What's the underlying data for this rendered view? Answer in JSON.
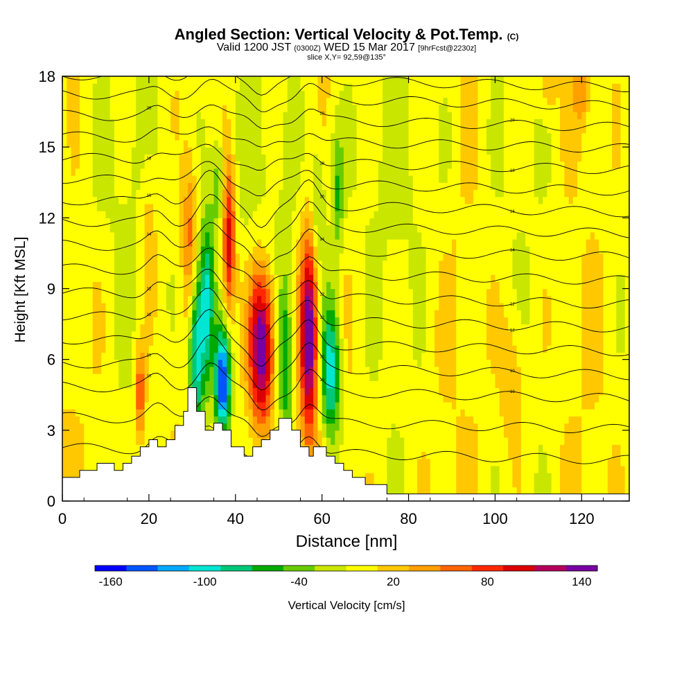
{
  "header": {
    "title": "Angled Section: Vertical Velocity & Pot.Temp.",
    "title_tag": "(C)",
    "valid_a": "Valid 1200 JST",
    "valid_zulu": "(0300Z)",
    "valid_b": "WED 15 Mar 2017",
    "forecast": "[9hrFcst@2230z]",
    "slice": "slice X,Y= 92,59@135°"
  },
  "chart_data": {
    "type": "heatmap",
    "xlabel": "Distance [nm]",
    "ylabel": "Height [Kft MSL]",
    "xlim": [
      0,
      131
    ],
    "ylim": [
      0,
      18
    ],
    "x_ticks": [
      "0",
      "20",
      "40",
      "60",
      "80",
      "100",
      "120"
    ],
    "y_ticks": [
      "0",
      "3",
      "6",
      "9",
      "12",
      "15",
      "18"
    ],
    "colorbar": {
      "label": "Vertical Velocity [cm/s]",
      "tick_labels": [
        "-160",
        "-100",
        "-40",
        "20",
        "80",
        "140"
      ],
      "range": [
        -160,
        160
      ],
      "colors": [
        "#0000ff",
        "#0055ff",
        "#00aaff",
        "#00e6d2",
        "#00c878",
        "#00aa00",
        "#66cc00",
        "#c8e600",
        "#ffff00",
        "#ffc800",
        "#ffa000",
        "#ff6400",
        "#ff2800",
        "#dc0000",
        "#b4005a",
        "#7800a0"
      ]
    },
    "terrain": [
      [
        0,
        1
      ],
      [
        4,
        1
      ],
      [
        4,
        1.3
      ],
      [
        8,
        1.3
      ],
      [
        8,
        1.6
      ],
      [
        12,
        1.6
      ],
      [
        12,
        1.3
      ],
      [
        14,
        1.3
      ],
      [
        14,
        1.6
      ],
      [
        16,
        1.6
      ],
      [
        16,
        1.9
      ],
      [
        18,
        1.9
      ],
      [
        18,
        2.3
      ],
      [
        20,
        2.3
      ],
      [
        20,
        2.6
      ],
      [
        22,
        2.6
      ],
      [
        22,
        2.3
      ],
      [
        24,
        2.3
      ],
      [
        24,
        2.6
      ],
      [
        26,
        2.6
      ],
      [
        26,
        3.2
      ],
      [
        28,
        3.2
      ],
      [
        28,
        3.8
      ],
      [
        29,
        3.8
      ],
      [
        29,
        4.8
      ],
      [
        31,
        4.8
      ],
      [
        31,
        3.8
      ],
      [
        33,
        3.8
      ],
      [
        33,
        3.0
      ],
      [
        35,
        3.0
      ],
      [
        35,
        3.3
      ],
      [
        37,
        3.3
      ],
      [
        37,
        3.0
      ],
      [
        39,
        3.0
      ],
      [
        39,
        2.3
      ],
      [
        42,
        2.3
      ],
      [
        42,
        1.9
      ],
      [
        44,
        1.9
      ],
      [
        44,
        2.3
      ],
      [
        46,
        2.3
      ],
      [
        46,
        2.6
      ],
      [
        48,
        2.6
      ],
      [
        48,
        3.0
      ],
      [
        50,
        3.0
      ],
      [
        50,
        3.5
      ],
      [
        53,
        3.5
      ],
      [
        53,
        3.0
      ],
      [
        55,
        3.0
      ],
      [
        55,
        2.3
      ],
      [
        57,
        2.3
      ],
      [
        57,
        1.9
      ],
      [
        58,
        1.9
      ],
      [
        58,
        2.3
      ],
      [
        61,
        2.3
      ],
      [
        61,
        1.9
      ],
      [
        63,
        1.9
      ],
      [
        63,
        1.6
      ],
      [
        65,
        1.6
      ],
      [
        65,
        1.3
      ],
      [
        67,
        1.3
      ],
      [
        67,
        1.0
      ],
      [
        70,
        1.0
      ],
      [
        70,
        0.7
      ],
      [
        75,
        0.7
      ],
      [
        75,
        0.3
      ],
      [
        131,
        0.3
      ]
    ],
    "features": [
      {
        "x": 18,
        "y": 4.5,
        "sx": 0.8,
        "sy": 1.3,
        "value": 80
      },
      {
        "x": 20,
        "y": 12,
        "sx": 1.5,
        "sy": 2.5,
        "value": 30
      },
      {
        "x": 31,
        "y": 6.5,
        "sx": 1.3,
        "sy": 2.5,
        "value": -120
      },
      {
        "x": 33.5,
        "y": 8.5,
        "sx": 1.2,
        "sy": 2.5,
        "value": -100
      },
      {
        "x": 37,
        "y": 5,
        "sx": 1.2,
        "sy": 1.6,
        "value": -160
      },
      {
        "x": 29.5,
        "y": 11,
        "sx": 1.2,
        "sy": 2.5,
        "value": 60
      },
      {
        "x": 38.5,
        "y": 11,
        "sx": 1.0,
        "sy": 2.2,
        "value": 110
      },
      {
        "x": 36,
        "y": 13.5,
        "sx": 1.0,
        "sy": 1.5,
        "value": -40
      },
      {
        "x": 46,
        "y": 6.5,
        "sx": 2.0,
        "sy": 2.3,
        "value": 160
      },
      {
        "x": 51.5,
        "y": 6,
        "sx": 1.2,
        "sy": 2.5,
        "value": -70
      },
      {
        "x": 57,
        "y": 7,
        "sx": 1.4,
        "sy": 3.0,
        "value": 150
      },
      {
        "x": 62,
        "y": 5.5,
        "sx": 1.6,
        "sy": 2.2,
        "value": -110
      },
      {
        "x": 59,
        "y": 12.5,
        "sx": 1.2,
        "sy": 2.0,
        "value": -40
      },
      {
        "x": 63.5,
        "y": 13,
        "sx": 1.0,
        "sy": 2.0,
        "value": -50
      },
      {
        "x": 104,
        "y": 5,
        "sx": 2.0,
        "sy": 2.2,
        "value": 35
      },
      {
        "x": 120,
        "y": 17.5,
        "sx": 1.5,
        "sy": 1.0,
        "value": 40
      },
      {
        "x": 112,
        "y": 17.5,
        "sx": 1.5,
        "sy": 1.0,
        "value": 30
      }
    ],
    "isentropes": [
      {
        "level": 2,
        "label": ""
      },
      {
        "level": 3.3,
        "label": ""
      },
      {
        "level": 4.6,
        "label": "10"
      },
      {
        "level": 5.6,
        "label": "10"
      },
      {
        "level": 6.6,
        "label": ""
      },
      {
        "level": 7.6,
        "label": "12"
      },
      {
        "level": 8.6,
        "label": "12"
      },
      {
        "level": 9.6,
        "label": ""
      },
      {
        "level": 10.6,
        "label": "14"
      },
      {
        "level": 11.6,
        "label": ""
      },
      {
        "level": 12.5,
        "label": "16"
      },
      {
        "level": 13.4,
        "label": ""
      },
      {
        "level": 14.3,
        "label": "18"
      },
      {
        "level": 15.2,
        "label": ""
      },
      {
        "level": 16.1,
        "label": "20"
      },
      {
        "level": 17.0,
        "label": ""
      },
      {
        "level": 17.8,
        "label": ""
      }
    ]
  }
}
